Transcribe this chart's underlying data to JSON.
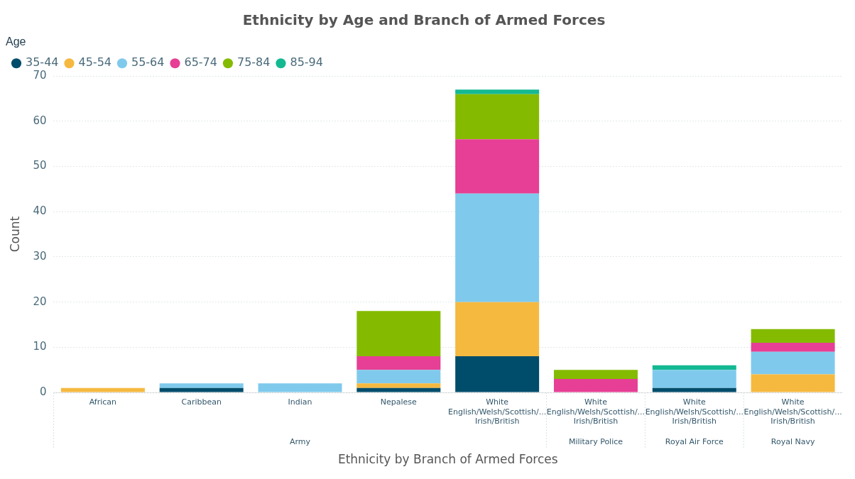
{
  "chart_data": {
    "type": "bar",
    "stacked": true,
    "title": "Ethnicity by Age and Branch of Armed Forces",
    "xlabel": "Ethnicity by Branch of Armed Forces",
    "ylabel": "Count",
    "legend_title": "Age",
    "legend": "top left",
    "grid": "y",
    "categories": [
      "African",
      "Caribbean",
      "Indian",
      "Nepalese",
      "White English/Welsh/Scottish/... Irish/British",
      "White English/Welsh/Scottish/... Irish/British",
      "White English/Welsh/Scottish/... Irish/British",
      "White English/Welsh/Scottish/... Irish/British"
    ],
    "annotations": [
      "Army",
      "Military Police",
      "Royal Air Force",
      "Royal Navy"
    ],
    "ylim": [
      0,
      70
    ],
    "yticks": [
      0,
      10,
      20,
      30,
      40,
      50,
      60,
      70
    ],
    "series": [
      {
        "name": "35-44",
        "color": "#004c6b",
        "values": [
          null,
          1,
          null,
          1,
          8,
          null,
          1,
          null
        ]
      },
      {
        "name": "45-54",
        "color": "#f5b940",
        "values": [
          1,
          null,
          null,
          1,
          12,
          null,
          null,
          4
        ]
      },
      {
        "name": "55-64",
        "color": "#7fcaec",
        "values": [
          null,
          1,
          2,
          3,
          24,
          null,
          4,
          5
        ]
      },
      {
        "name": "65-74",
        "color": "#e63f95",
        "values": [
          null,
          null,
          null,
          3,
          12,
          3,
          null,
          2
        ]
      },
      {
        "name": "75-84",
        "color": "#84bb00",
        "values": [
          null,
          null,
          null,
          10,
          10,
          2,
          null,
          3
        ]
      },
      {
        "name": "85-94",
        "color": "#14b992",
        "values": [
          null,
          null,
          null,
          null,
          1,
          null,
          1,
          null
        ]
      }
    ]
  }
}
